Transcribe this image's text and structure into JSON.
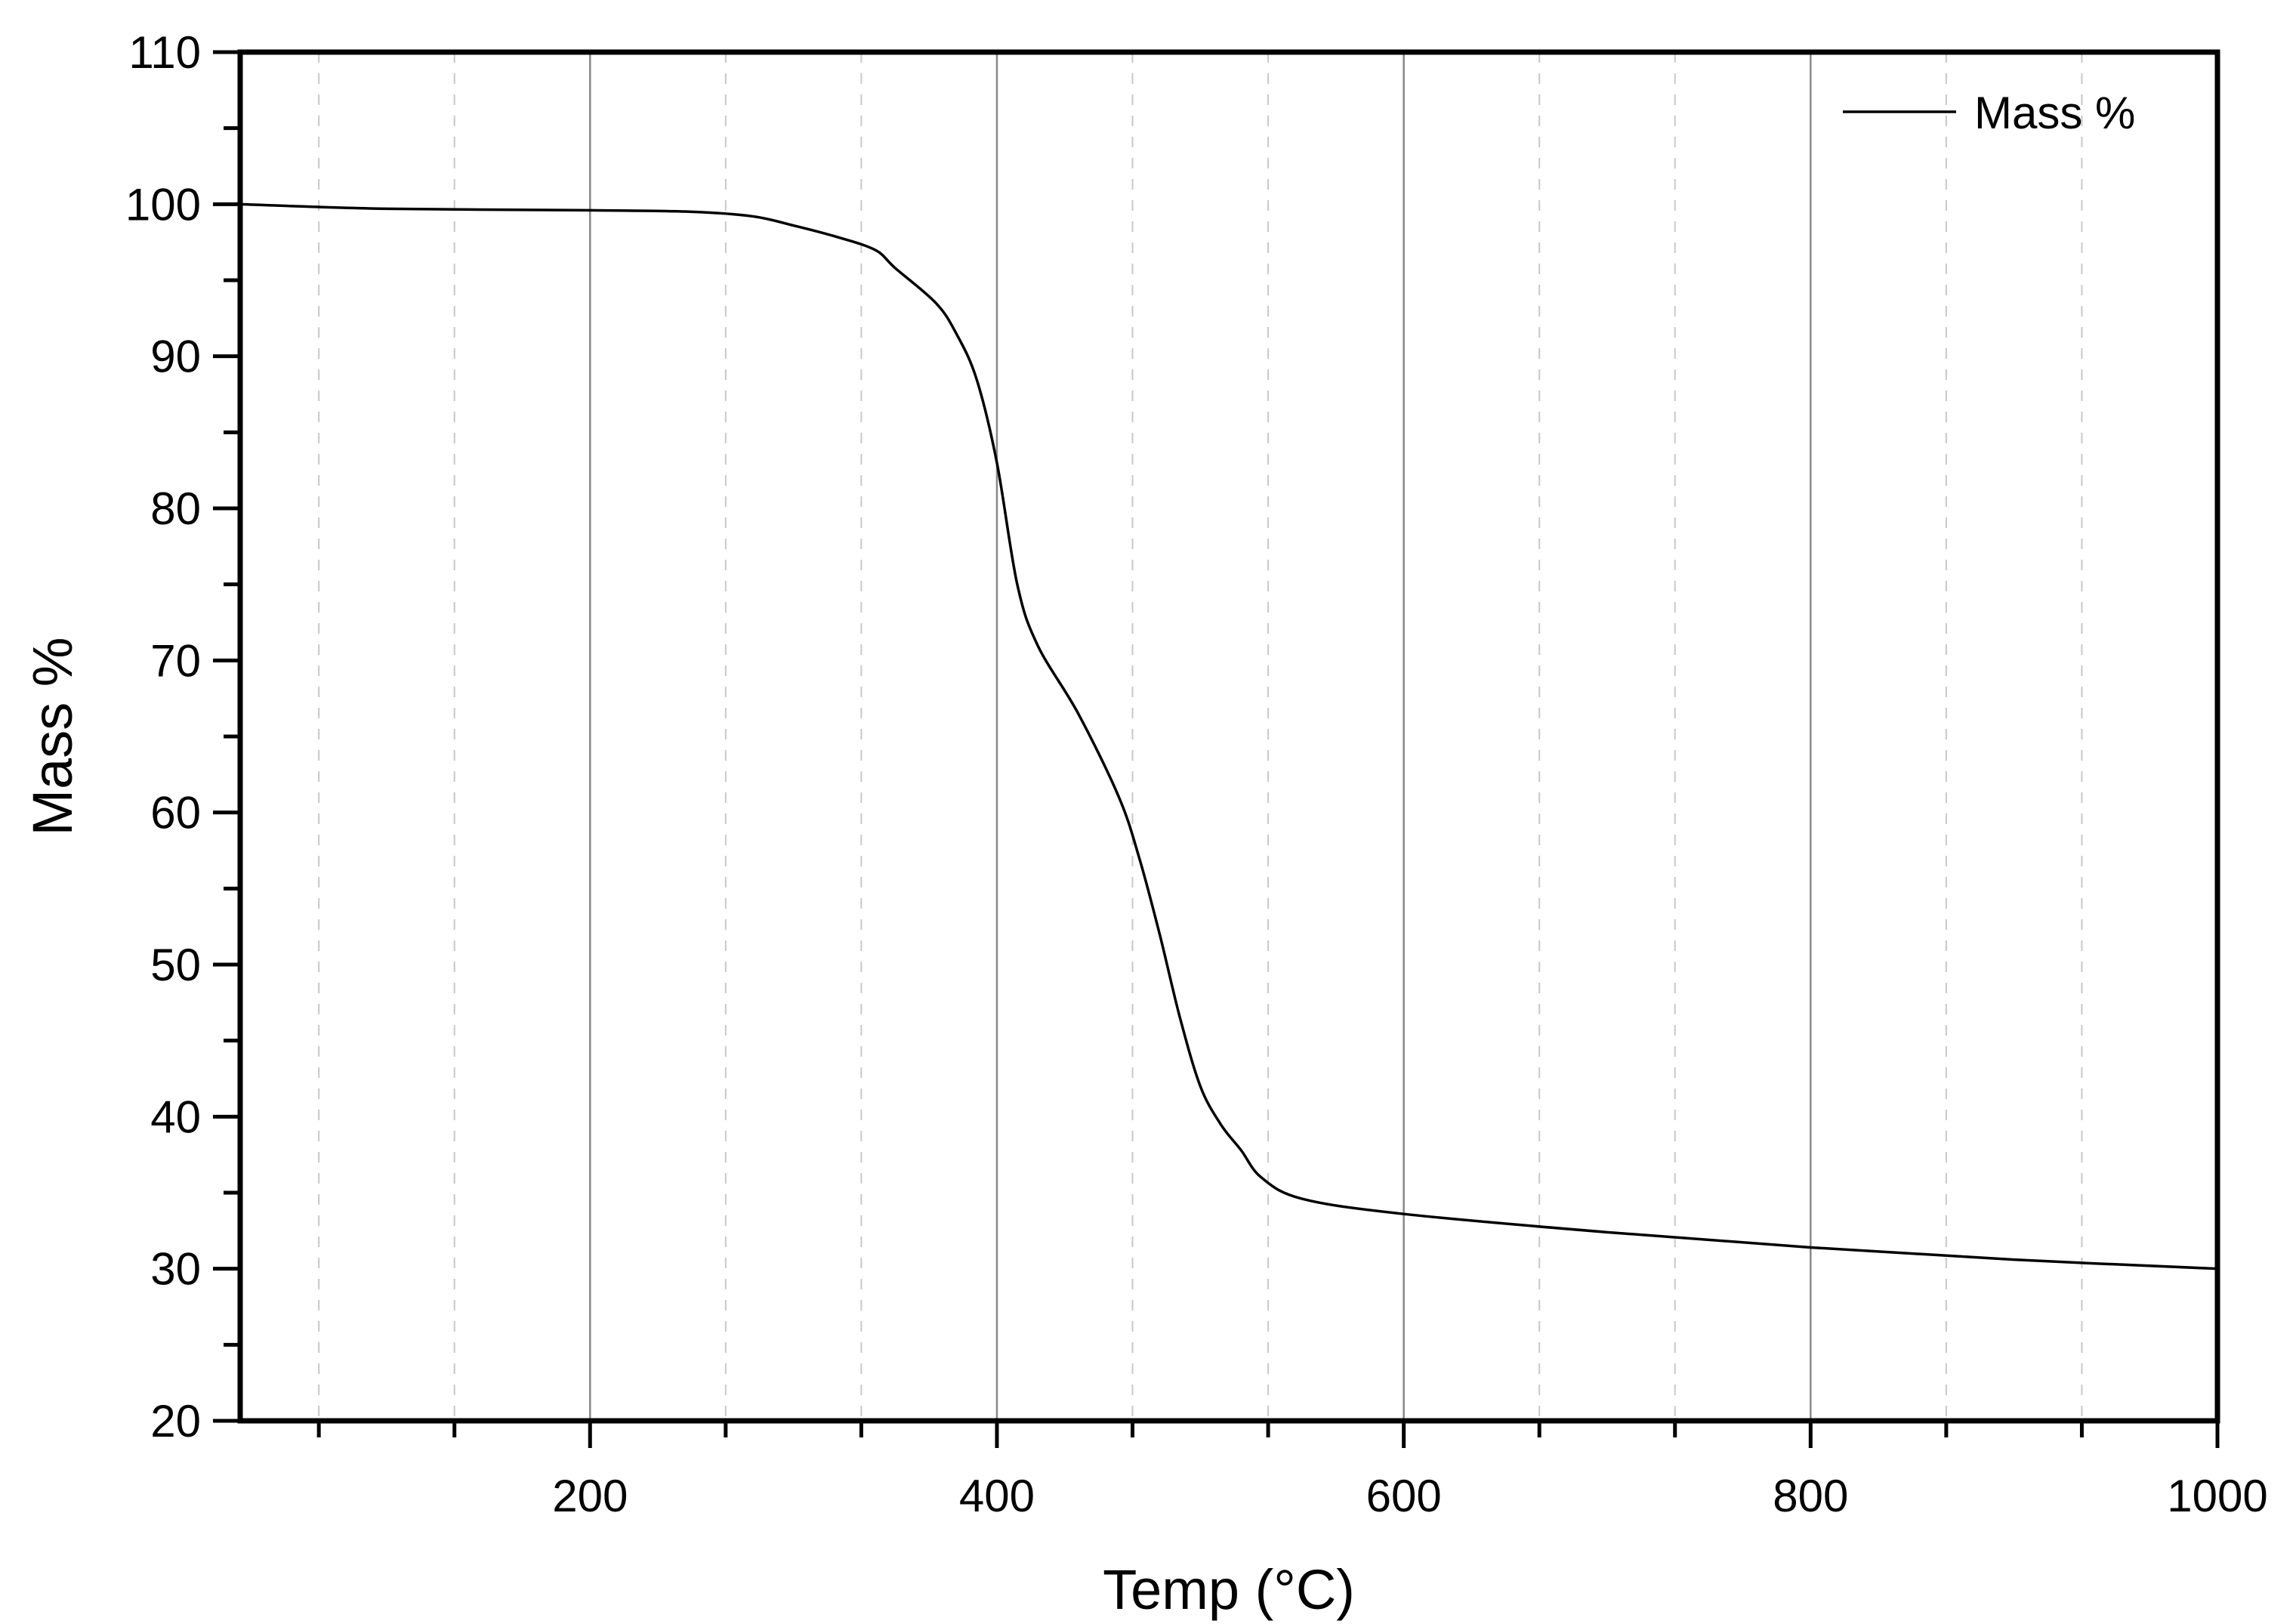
{
  "chart_data": {
    "type": "line",
    "title": "",
    "xlabel": "Temp (°C)",
    "ylabel": "Mass %",
    "xlim": [
      28,
      1000
    ],
    "ylim": [
      20,
      110
    ],
    "x_ticks": [
      200,
      400,
      600,
      800,
      1000
    ],
    "x_tick_labels": [
      "200",
      "400",
      "600",
      "800",
      "1000"
    ],
    "y_ticks": [
      20,
      30,
      40,
      50,
      60,
      70,
      80,
      90,
      100,
      110
    ],
    "y_tick_labels": [
      "20",
      "30",
      "40",
      "50",
      "60",
      "70",
      "80",
      "90",
      "100",
      "110"
    ],
    "grid": "vertical: solid major lines, dashed minor lines",
    "legend_position": "top-right",
    "line_color": "#000000",
    "series": [
      {
        "name": "Mass %",
        "x": [
          28,
          100,
          200,
          250,
          280,
          300,
          320,
          340,
          350,
          370,
          380,
          390,
          400,
          410,
          420,
          440,
          460,
          470,
          480,
          490,
          500,
          510,
          520,
          530,
          550,
          600,
          700,
          800,
          900,
          1000
        ],
        "y": [
          100,
          99.7,
          99.6,
          99.5,
          99.2,
          98.6,
          97.9,
          97.0,
          95.8,
          93.5,
          91.5,
          88.5,
          83,
          75,
          71,
          66.5,
          61,
          57,
          52,
          46.5,
          42,
          39.5,
          37.8,
          36,
          34.6,
          33.6,
          32.4,
          31.4,
          30.6,
          30.0
        ]
      }
    ]
  }
}
